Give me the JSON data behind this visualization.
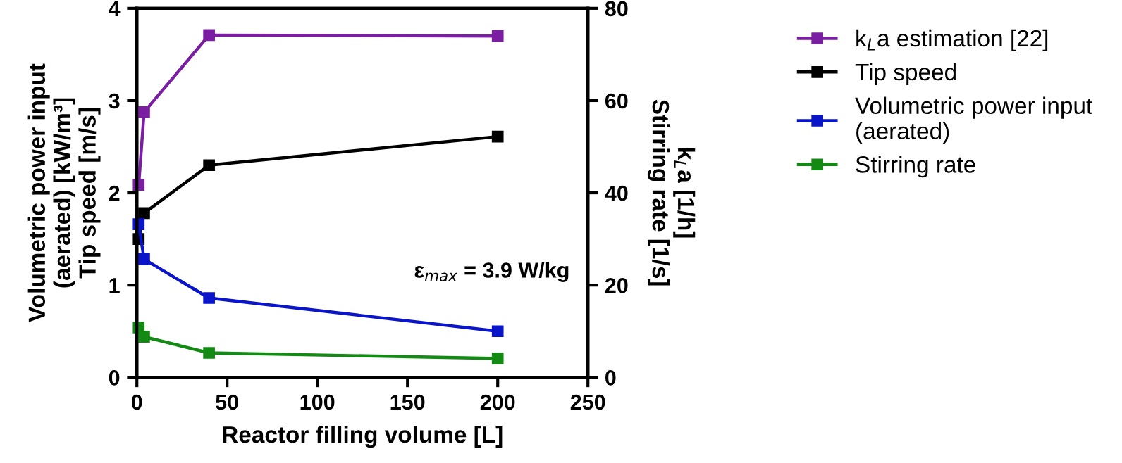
{
  "chart_data": {
    "type": "line",
    "xlabel": "Reactor filling volume [L]",
    "ylabel": "Volumetric power input\n(aerated) [kW/m³]\nTip speed [m/s]",
    "y2label": "k$_{L}$a [1/h]\nStirring rate [1/s]",
    "xlim": [
      0,
      250
    ],
    "xticks": [
      0,
      50,
      100,
      150,
      200,
      250
    ],
    "ylim": [
      0,
      4
    ],
    "yticks": [
      0,
      1,
      2,
      3,
      4
    ],
    "y2lim": [
      0,
      80
    ],
    "y2ticks": [
      0,
      20,
      40,
      60,
      80
    ],
    "marker": "square",
    "line_style": "solid",
    "grid": false,
    "legend": "right",
    "series": [
      {
        "name": "k$_{L}$a estimation [22]",
        "color": "#7b1fa2",
        "axis": "y2",
        "x": [
          1,
          4,
          40,
          200
        ],
        "values": [
          41.7,
          57.5,
          74.2,
          74
        ]
      },
      {
        "name": "Tip speed",
        "color": "#000000",
        "x": [
          1,
          4,
          40,
          200
        ],
        "values": [
          1.5,
          1.78,
          2.3,
          2.61
        ]
      },
      {
        "name": "Volumetric power input\n(aerated)",
        "color": "#0a14c8",
        "x": [
          1,
          4,
          40,
          200
        ],
        "values": [
          1.66,
          1.28,
          0.86,
          0.5
        ]
      },
      {
        "name": "Stirring rate",
        "color": "#138a13",
        "axis": "y2",
        "x": [
          1,
          4,
          40,
          200
        ],
        "values": [
          10.8,
          8.8,
          5.3,
          4.1
        ]
      }
    ],
    "annotations": [
      "ε$_{max}$ = 3.9 W/kg"
    ]
  }
}
